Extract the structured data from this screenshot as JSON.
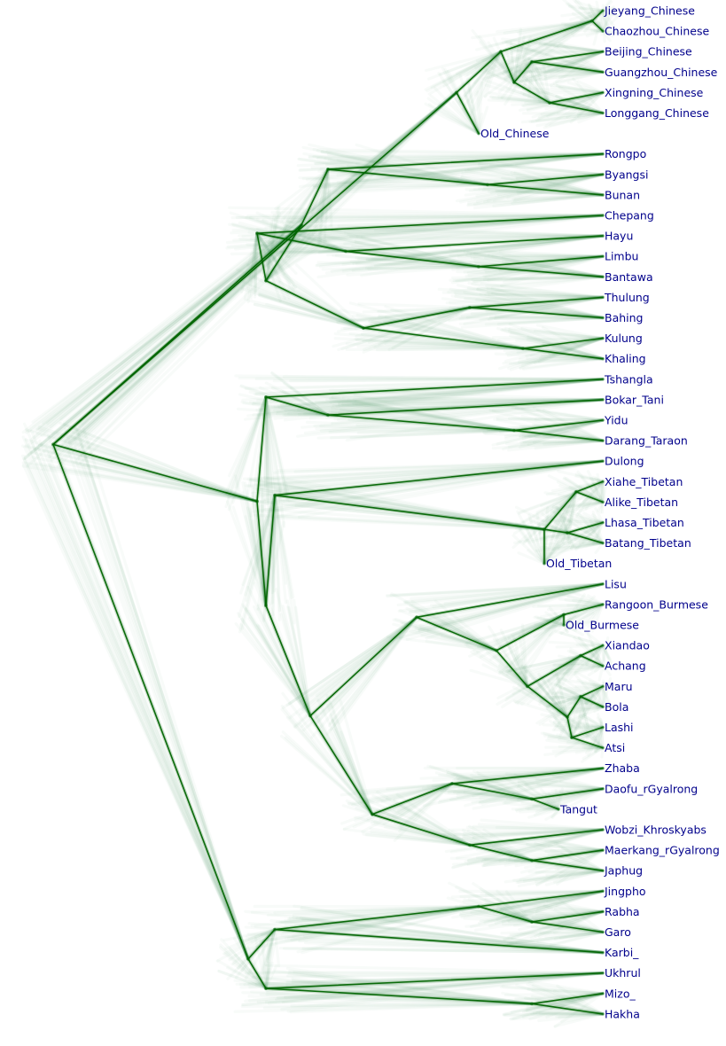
{
  "colors": {
    "branch": "#006400",
    "cloud": "#2e8b57",
    "label": "#00008b",
    "background": "#ffffff"
  },
  "taxa": [
    "Jieyang_Chinese",
    "Chaozhou_Chinese",
    "Beijing_Chinese",
    "Guangzhou_Chinese",
    "Xingning_Chinese",
    "Longgang_Chinese",
    "Old_Chinese",
    "Rongpo",
    "Byangsi",
    "Bunan",
    "Chepang",
    "Hayu",
    "Limbu",
    "Bantawa",
    "Thulung",
    "Bahing",
    "Kulung",
    "Khaling",
    "Tshangla",
    "Bokar_Tani",
    "Yidu",
    "Darang_Taraon",
    "Dulong",
    "Xiahe_Tibetan",
    "Alike_Tibetan",
    "Lhasa_Tibetan",
    "Batang_Tibetan",
    "Old_Tibetan",
    "Lisu",
    "Rangoon_Burmese",
    "Old_Burmese",
    "Xiandao",
    "Achang",
    "Maru",
    "Bola",
    "Lashi",
    "Atsi",
    "Zhaba",
    "Daofu_rGyalrong",
    "Tangut",
    "Wobzi_Khroskyabs",
    "Maerkang_rGyalrong",
    "Japhug",
    "Jingpho",
    "Rabha",
    "Garo",
    "Karbi_",
    "Ukhrul",
    "Mizo_",
    "Hakha"
  ]
}
